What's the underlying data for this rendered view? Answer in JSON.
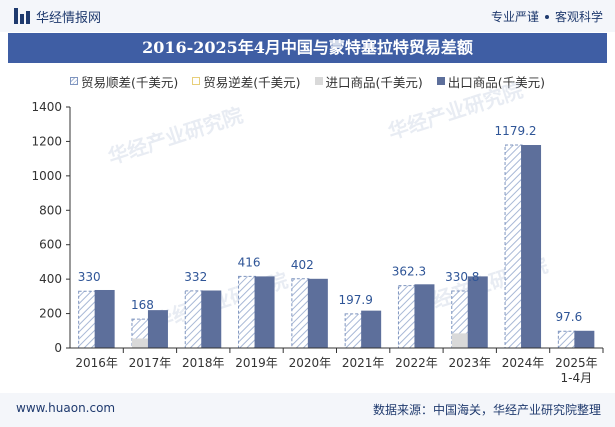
{
  "header": {
    "brand": "华经情报网",
    "tagline_left": "专业严谨",
    "tagline_right": "客观科学"
  },
  "title": "2016-2025年4月中国与蒙特塞拉特贸易差额",
  "watermark": "华经产业研究院",
  "footer": {
    "website": "www.huaon.com",
    "source": "数据来源：中国海关，华经产业研究院整理"
  },
  "colors": {
    "surplus_stroke": "#7f95bf",
    "surplus_hatch": "#a8b8d6",
    "deficit": "#e8cf7a",
    "import": "#d9d9d9",
    "export": "#5d6f9b",
    "label": "#2f5597"
  },
  "chart_data": {
    "type": "bar",
    "title": "2016-2025年4月中国与蒙特塞拉特贸易差额",
    "categories": [
      "2016年",
      "2017年",
      "2018年",
      "2019年",
      "2020年",
      "2021年",
      "2022年",
      "2023年",
      "2024年",
      "2025年 1-4月"
    ],
    "series": [
      {
        "name": "贸易顺差(千美元)",
        "values": [
          330,
          168,
          332,
          416,
          402,
          197.9,
          362.3,
          330.8,
          1179.2,
          97.6
        ]
      },
      {
        "name": "贸易逆差(千美元)",
        "values": [
          0,
          0,
          0,
          0,
          0,
          0,
          0,
          0,
          0,
          0
        ]
      },
      {
        "name": "进口商品(千美元)",
        "values": [
          0,
          55,
          0,
          0,
          0,
          0,
          0,
          85,
          0,
          0
        ]
      },
      {
        "name": "出口商品(千美元)",
        "values": [
          337,
          220,
          334,
          416,
          402,
          217,
          370,
          416,
          1179.2,
          100
        ]
      }
    ],
    "data_labels": [
      "330",
      "168",
      "332",
      "416",
      "402",
      "197.9",
      "362.3",
      "330.8",
      "1179.2",
      "97.6"
    ],
    "ylim": [
      0,
      1400
    ],
    "yticks": [
      0,
      200,
      400,
      600,
      800,
      1000,
      1200,
      1400
    ],
    "xlabel": "",
    "ylabel": "",
    "legend_position": "top"
  }
}
